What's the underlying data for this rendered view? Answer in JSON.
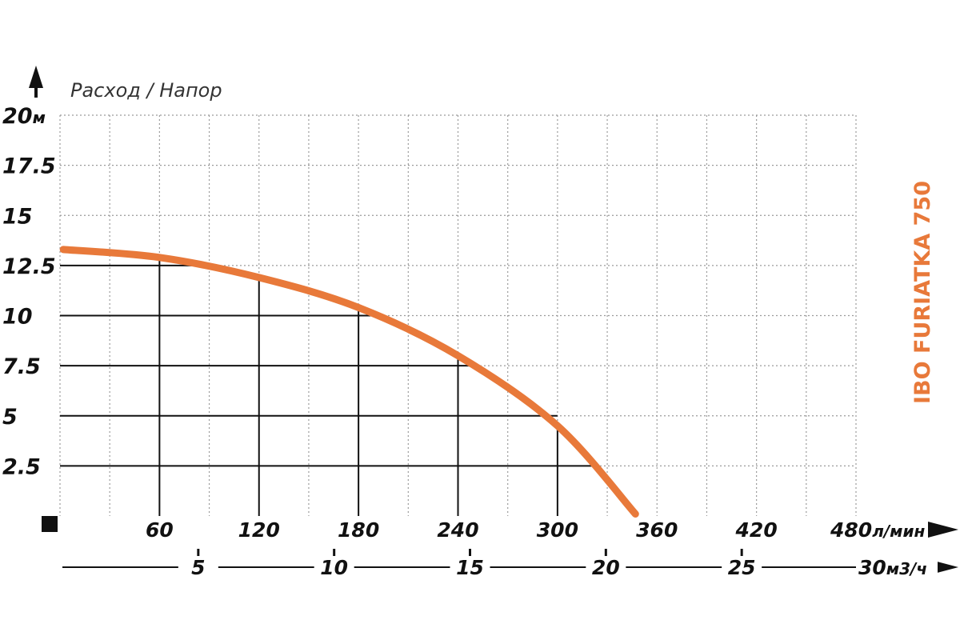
{
  "chart_data": {
    "type": "line",
    "axis_title": "Расход / Напор",
    "y_unit": "м",
    "y_ticks": [
      "2.5",
      "5",
      "7.5",
      "10",
      "12.5",
      "15",
      "17.5",
      "20"
    ],
    "y_tick_values": [
      2.5,
      5,
      7.5,
      10,
      12.5,
      15,
      17.5,
      20
    ],
    "ylim": [
      0,
      20
    ],
    "x_unit": "л/мин",
    "x_ticks": [
      "60",
      "120",
      "180",
      "240",
      "300",
      "360",
      "420",
      "480"
    ],
    "x_tick_values": [
      60,
      120,
      180,
      240,
      300,
      360,
      420,
      480
    ],
    "xlim": [
      0,
      480
    ],
    "x2_unit": "м3/ч",
    "x2_ticks": [
      "5",
      "10",
      "15",
      "20",
      "25",
      "30"
    ],
    "x2_tick_values": [
      5,
      10,
      15,
      20,
      25,
      30
    ],
    "x2lim": [
      0,
      30
    ],
    "grid": true,
    "series": [
      {
        "name": "IBO FURIATKA 750",
        "color": "#E8793A",
        "x": [
          2,
          60,
          120,
          180,
          240,
          300,
          347
        ],
        "y": [
          13.3,
          12.9,
          11.9,
          10.4,
          8.0,
          4.5,
          0.1
        ]
      }
    ],
    "reference_points": [
      {
        "x": 82,
        "y": 12.5
      },
      {
        "x": 190,
        "y": 10
      },
      {
        "x": 252,
        "y": 7.5
      },
      {
        "x": 300,
        "y": 5
      },
      {
        "x": 325,
        "y": 2.5
      }
    ]
  }
}
